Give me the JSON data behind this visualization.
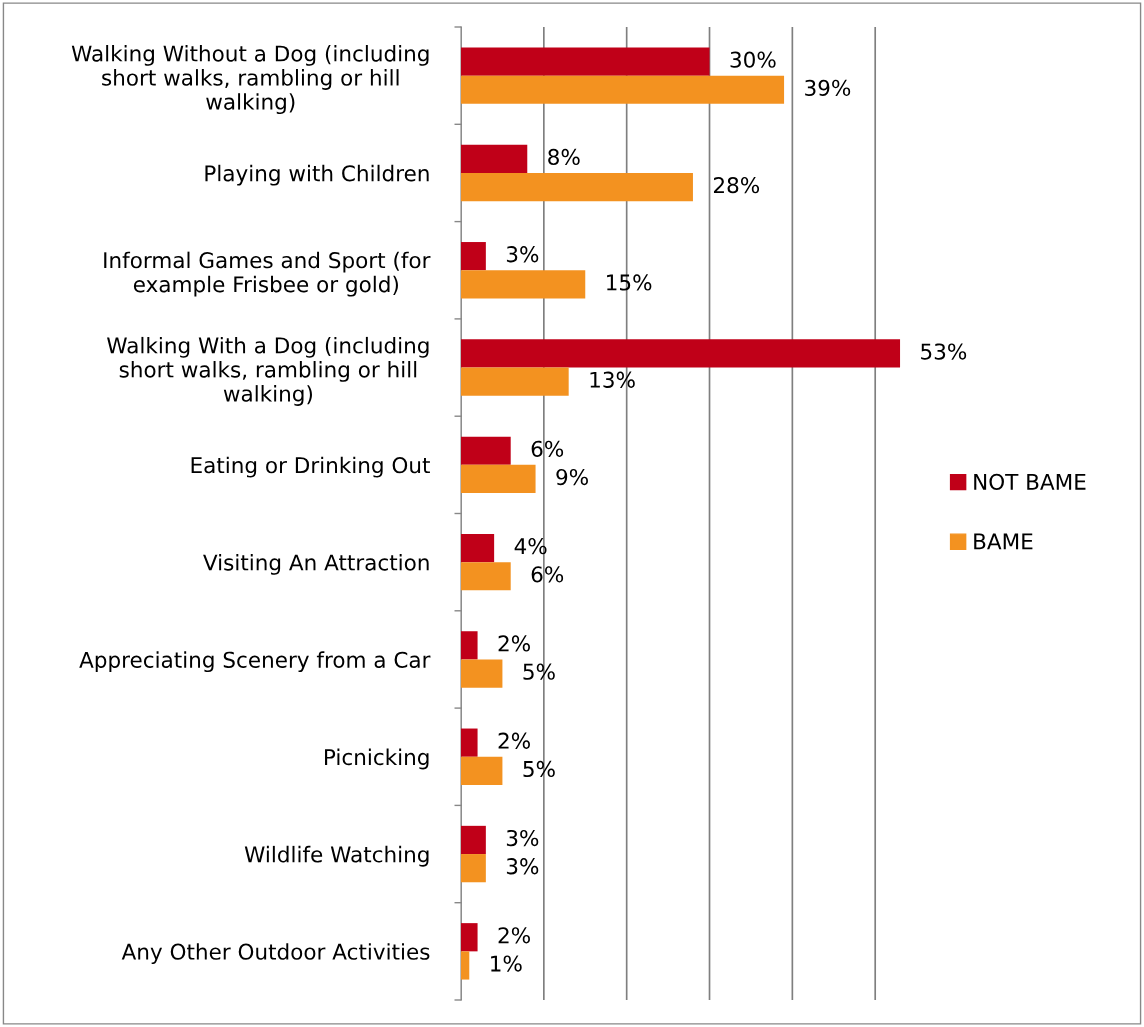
{
  "chart_data": {
    "type": "bar",
    "orientation": "horizontal",
    "categories": [
      "Walking Without a Dog (including\nshort walks, rambling or hill\nwalking)",
      "Playing with Children",
      "Informal Games and Sport (for\nexample Frisbee or gold)",
      "Walking With a Dog (including\nshort walks, rambling or hill\nwalking)",
      "Eating or Drinking Out",
      "Visiting An Attraction",
      "Appreciating Scenery from a Car",
      "Picnicking",
      "Wildlife Watching",
      "Any Other Outdoor Activities"
    ],
    "series": [
      {
        "name": "NOT BAME",
        "color": "#c00018",
        "values": [
          30,
          8,
          3,
          53,
          6,
          4,
          2,
          2,
          3,
          2
        ],
        "value_labels": [
          "30%",
          "8%",
          "3%",
          "53%",
          "6%",
          "4%",
          "2%",
          "2%",
          "3%",
          "2%"
        ]
      },
      {
        "name": "BAME",
        "color": "#f39220",
        "values": [
          39,
          28,
          15,
          13,
          9,
          6,
          5,
          5,
          3,
          1
        ],
        "value_labels": [
          "39%",
          "28%",
          "15%",
          "13%",
          "9%",
          "6%",
          "5%",
          "5%",
          "3%",
          "1%"
        ]
      }
    ],
    "grid": "x",
    "legend": "right"
  }
}
